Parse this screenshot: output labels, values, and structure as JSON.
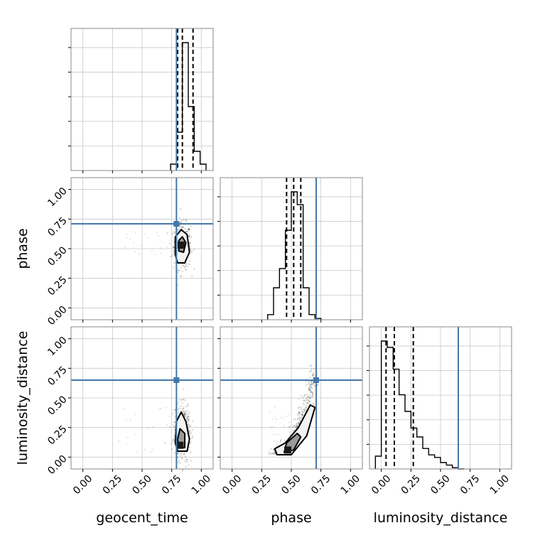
{
  "chart_data": {
    "type": "scatter",
    "title": "",
    "parameters": [
      "geocent_time",
      "phase",
      "luminosity_distance"
    ],
    "axis_labels": {
      "geocent_time": "geocent_time",
      "phase": "phase",
      "luminosity_distance": "luminosity_distance"
    },
    "ticks": [
      0.0,
      0.25,
      0.5,
      0.75,
      1.0
    ],
    "tick_labels": [
      "0.00",
      "0.25",
      "0.50",
      "0.75",
      "1.00"
    ],
    "xlim": [
      -0.1,
      1.1
    ],
    "grid": true,
    "truths": {
      "geocent_time": 0.79,
      "phase": 0.71,
      "luminosity_distance": 0.65
    },
    "truth_color": "#4477aa",
    "quantile_color": "#000000",
    "density_color": "#000000",
    "histograms": {
      "geocent_time": {
        "bin_edges": [
          0.74,
          0.79,
          0.84,
          0.89,
          0.94,
          0.99,
          1.04
        ],
        "counts": [
          0.05,
          0.3,
          1.0,
          0.5,
          0.15,
          0.05
        ],
        "quantiles": [
          0.8,
          0.84,
          0.93
        ]
      },
      "phase": {
        "bin_edges": [
          0.3,
          0.35,
          0.4,
          0.45,
          0.5,
          0.55,
          0.6,
          0.65,
          0.7,
          0.75
        ],
        "counts": [
          0.04,
          0.25,
          0.4,
          0.7,
          1.0,
          0.9,
          0.25,
          0.04,
          0.01
        ],
        "quantiles": [
          0.46,
          0.52,
          0.58
        ]
      },
      "luminosity_distance": {
        "bin_edges": [
          -0.05,
          0.0,
          0.05,
          0.1,
          0.15,
          0.2,
          0.25,
          0.3,
          0.35,
          0.4,
          0.45,
          0.5,
          0.55,
          0.6,
          0.65,
          0.7
        ],
        "counts": [
          0.1,
          1.0,
          0.95,
          0.78,
          0.58,
          0.45,
          0.32,
          0.25,
          0.16,
          0.11,
          0.09,
          0.05,
          0.03,
          0.01,
          0.0
        ],
        "quantiles": [
          0.04,
          0.11,
          0.27
        ]
      }
    },
    "scatter_panels": [
      {
        "x": "geocent_time",
        "y": "phase",
        "density_peak": [
          0.83,
          0.53
        ],
        "contours": [
          [
            [
              0.78,
              0.45
            ],
            [
              0.8,
              0.38
            ],
            [
              0.86,
              0.38
            ],
            [
              0.9,
              0.47
            ],
            [
              0.88,
              0.62
            ],
            [
              0.83,
              0.66
            ],
            [
              0.78,
              0.6
            ]
          ],
          [
            [
              0.81,
              0.48
            ],
            [
              0.85,
              0.47
            ],
            [
              0.87,
              0.55
            ],
            [
              0.84,
              0.6
            ],
            [
              0.81,
              0.57
            ]
          ]
        ]
      },
      {
        "x": "geocent_time",
        "y": "luminosity_distance",
        "density_peak": [
          0.82,
          0.1
        ],
        "contours": [
          [
            [
              0.8,
              0.05
            ],
            [
              0.88,
              0.05
            ],
            [
              0.9,
              0.15
            ],
            [
              0.87,
              0.3
            ],
            [
              0.83,
              0.38
            ],
            [
              0.79,
              0.3
            ],
            [
              0.78,
              0.12
            ]
          ],
          [
            [
              0.81,
              0.08
            ],
            [
              0.86,
              0.08
            ],
            [
              0.86,
              0.2
            ],
            [
              0.82,
              0.24
            ],
            [
              0.8,
              0.15
            ]
          ]
        ]
      },
      {
        "x": "phase",
        "y": "luminosity_distance",
        "density_peak": [
          0.47,
          0.06
        ],
        "contours": [
          [
            [
              0.38,
              0.02
            ],
            [
              0.5,
              0.02
            ],
            [
              0.63,
              0.18
            ],
            [
              0.7,
              0.42
            ],
            [
              0.66,
              0.44
            ],
            [
              0.56,
              0.25
            ],
            [
              0.45,
              0.12
            ],
            [
              0.36,
              0.07
            ]
          ],
          [
            [
              0.44,
              0.04
            ],
            [
              0.52,
              0.06
            ],
            [
              0.58,
              0.17
            ],
            [
              0.55,
              0.2
            ],
            [
              0.46,
              0.12
            ]
          ]
        ]
      }
    ]
  }
}
